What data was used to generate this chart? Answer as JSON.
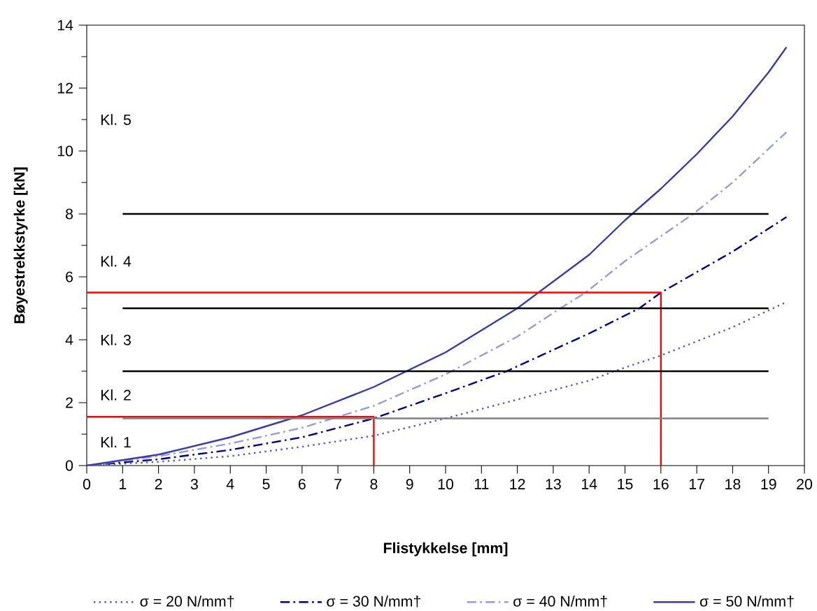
{
  "chart_data": {
    "type": "line",
    "xlabel": "Flistykkelse [mm]",
    "ylabel": "Bøyestrekkstyrke [kN]",
    "xlim": [
      0,
      20
    ],
    "ylim": [
      0,
      14
    ],
    "xticks": [
      0,
      1,
      2,
      3,
      4,
      5,
      6,
      7,
      8,
      9,
      10,
      11,
      12,
      13,
      14,
      15,
      16,
      17,
      18,
      19,
      20
    ],
    "yticks": [
      0,
      2,
      4,
      6,
      8,
      10,
      12,
      14
    ],
    "grid": false,
    "legend": "bottom",
    "marker": "none",
    "series": [
      {
        "name": "σ = 20 N/mm†",
        "color": "#5a5ab4",
        "line_style": "dotted",
        "x": [
          0,
          2,
          4,
          6,
          8,
          10,
          12,
          14,
          14.7,
          16,
          18,
          19.5
        ],
        "values": [
          0,
          0.12,
          0.3,
          0.6,
          0.95,
          1.5,
          2.1,
          2.7,
          3.0,
          3.5,
          4.4,
          5.2
        ]
      },
      {
        "name": "σ = 30 N/mm†",
        "color": "#000080",
        "line_style": "dashed",
        "x": [
          0,
          2,
          4,
          6,
          8,
          10,
          11.7,
          14,
          15.4,
          16,
          18,
          19.5
        ],
        "values": [
          0,
          0.2,
          0.5,
          0.9,
          1.5,
          2.3,
          3.0,
          4.2,
          5.0,
          5.5,
          6.8,
          7.9
        ]
      },
      {
        "name": "σ = 40 N/mm†",
        "color": "#9a9ad8",
        "line_style": "dashed",
        "x": [
          0,
          2,
          4,
          6,
          8,
          10,
          12,
          13.2,
          13.9,
          15,
          16.9,
          18,
          19.5
        ],
        "values": [
          0,
          0.3,
          0.7,
          1.2,
          1.9,
          2.9,
          4.1,
          5.0,
          5.5,
          6.5,
          8.0,
          9.0,
          10.6
        ]
      },
      {
        "name": "σ = 50 N/mm†",
        "color": "#3a3aa8",
        "line_style": "solid",
        "x": [
          0,
          2,
          4,
          6,
          8,
          10,
          12,
          14,
          15,
          16,
          17,
          18,
          19,
          19.5
        ],
        "values": [
          0,
          0.35,
          0.9,
          1.6,
          2.5,
          3.6,
          5.0,
          6.7,
          7.8,
          8.8,
          9.9,
          11.1,
          12.5,
          13.3
        ]
      },
      {
        "color": "#ff0000",
        "line_style": "solid",
        "x": [
          0,
          8,
          8
        ],
        "values": [
          1.55,
          1.55,
          0
        ]
      },
      {
        "color": "#ff0000",
        "line_style": "solid",
        "x": [
          0,
          16,
          16
        ],
        "values": [
          5.5,
          5.5,
          0
        ]
      }
    ],
    "ref_lines": [
      {
        "axis": "y",
        "value": 1.5,
        "color": "#808080"
      },
      {
        "axis": "y",
        "value": 3,
        "color": "#000000"
      },
      {
        "axis": "y",
        "value": 5,
        "color": "#000000"
      },
      {
        "axis": "y",
        "value": 8,
        "color": "#000000"
      }
    ],
    "annotations": [
      "Kl. 1",
      "Kl. 2",
      "Kl. 3",
      "Kl. 4",
      "Kl. 5"
    ]
  }
}
